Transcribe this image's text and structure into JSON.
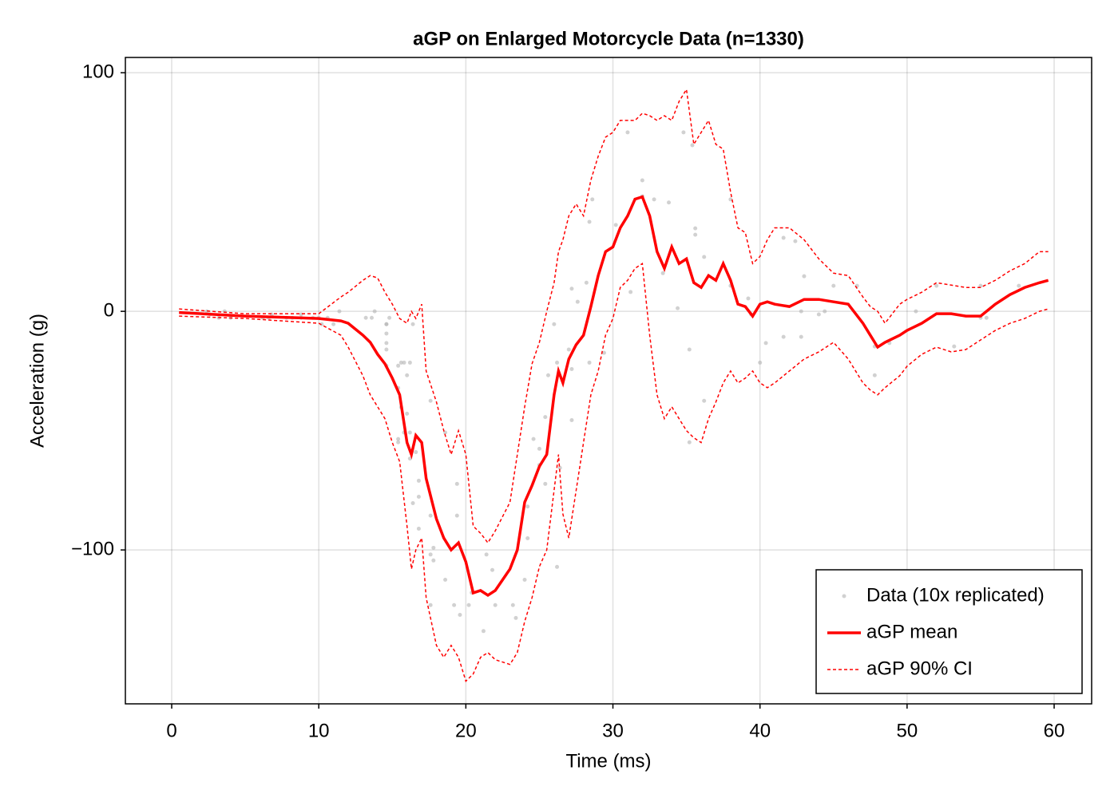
{
  "chart_data": {
    "type": "line",
    "title": "aGP on Enlarged Motorcycle Data (n=1330)",
    "x_label": "Time (ms)",
    "y_label": "Acceleration (g)",
    "xlim": [
      -3.15,
      62.55
    ],
    "ylim": [
      -164.5,
      106.4
    ],
    "xticks": [
      0,
      10,
      20,
      30,
      40,
      50,
      60
    ],
    "yticks": [
      {
        "value": -100,
        "label": "−100"
      },
      0,
      100
    ],
    "grid": true,
    "legend": "bottom right",
    "scatter": {
      "name": "Data (10x replicated)",
      "color": "#b3b3b3",
      "x": [
        2.4,
        2.6,
        3.2,
        3.6,
        4.0,
        6.2,
        6.6,
        6.8,
        7.8,
        8.2,
        8.8,
        8.8,
        9.6,
        10.0,
        10.2,
        10.6,
        11.0,
        11.4,
        13.2,
        13.6,
        13.8,
        14.6,
        14.6,
        14.6,
        14.6,
        14.6,
        14.6,
        14.8,
        15.4,
        15.4,
        15.4,
        15.4,
        15.6,
        15.6,
        15.8,
        15.8,
        16.0,
        16.0,
        16.2,
        16.2,
        16.2,
        16.4,
        16.4,
        16.6,
        16.8,
        16.8,
        16.8,
        17.6,
        17.6,
        17.6,
        17.6,
        17.8,
        17.8,
        18.6,
        18.6,
        19.2,
        19.4,
        19.4,
        19.6,
        20.2,
        20.4,
        21.2,
        21.4,
        21.8,
        22.0,
        23.2,
        23.4,
        24.0,
        24.2,
        24.2,
        24.6,
        25.0,
        25.0,
        25.4,
        25.4,
        25.6,
        26.0,
        26.2,
        26.2,
        26.4,
        27.0,
        27.2,
        27.2,
        27.2,
        27.6,
        28.2,
        28.4,
        28.4,
        28.6,
        29.4,
        30.2,
        31.0,
        31.2,
        32.0,
        32.0,
        32.8,
        33.4,
        33.8,
        34.4,
        34.8,
        35.2,
        35.2,
        35.4,
        35.6,
        35.6,
        36.2,
        36.2,
        38.0,
        38.0,
        39.2,
        39.4,
        40.0,
        40.4,
        41.6,
        41.6,
        42.4,
        42.8,
        42.8,
        43.0,
        44.0,
        44.4,
        45.0,
        46.6,
        47.8,
        47.8,
        48.8,
        50.6,
        52.0,
        53.2,
        55.0,
        55.0,
        55.4,
        57.6
      ],
      "y": [
        0.0,
        -1.3,
        -2.7,
        0.0,
        -2.7,
        -2.7,
        -2.7,
        -1.3,
        -2.7,
        -2.7,
        -1.3,
        -2.7,
        -2.7,
        -2.7,
        -5.4,
        -2.7,
        -5.4,
        0.0,
        -2.7,
        -2.7,
        0.0,
        -13.3,
        -5.4,
        -5.4,
        -9.3,
        -16.0,
        -22.8,
        -2.7,
        -22.8,
        -32.1,
        -53.5,
        -54.9,
        -40.2,
        -21.5,
        -21.5,
        -50.8,
        -42.9,
        -26.8,
        -21.5,
        -50.8,
        -61.7,
        -5.4,
        -80.4,
        -59.0,
        -71.0,
        -91.1,
        -77.7,
        -37.5,
        -85.6,
        -123.1,
        -101.9,
        -99.1,
        -104.4,
        -112.5,
        -50.8,
        -123.1,
        -85.6,
        -72.3,
        -127.2,
        -123.1,
        -117.9,
        -134.0,
        -101.9,
        -108.4,
        -123.1,
        -123.1,
        -128.5,
        -112.5,
        -95.1,
        -81.8,
        -53.5,
        -64.4,
        -57.6,
        -72.3,
        -44.3,
        -26.8,
        -5.4,
        -107.1,
        -21.5,
        -65.6,
        -16.0,
        -45.6,
        -24.2,
        9.5,
        4.0,
        12.0,
        -21.5,
        37.5,
        46.9,
        -17.4,
        36.2,
        75.0,
        8.1,
        54.9,
        48.2,
        46.9,
        16.0,
        45.6,
        1.3,
        75.0,
        -16.0,
        -54.9,
        69.6,
        34.8,
        32.1,
        -37.5,
        22.8,
        46.9,
        10.7,
        5.4,
        -1.3,
        -21.5,
        -13.3,
        30.8,
        -10.7,
        29.4,
        0.0,
        -10.7,
        14.7,
        -1.3,
        0.0,
        10.7,
        10.7,
        -26.8,
        -14.7,
        -13.3,
        0.0,
        10.7,
        -14.7,
        -2.7,
        10.7,
        -2.7,
        10.7
      ]
    },
    "x": [
      0.5,
      5,
      10,
      11.5,
      12,
      13,
      13.5,
      14,
      14.5,
      15,
      15.5,
      16,
      16.3,
      16.6,
      17,
      17.3,
      18,
      18.5,
      19,
      19.5,
      20,
      20.5,
      21,
      21.5,
      22,
      23,
      23.5,
      24,
      24.5,
      25,
      25.5,
      26,
      26.3,
      26.6,
      27,
      27.5,
      28,
      28.5,
      29,
      29.5,
      30,
      30.5,
      31,
      31.5,
      32,
      32.5,
      33,
      33.5,
      34,
      34.5,
      35,
      35.5,
      36,
      36.5,
      37,
      37.5,
      38,
      38.5,
      39,
      39.5,
      40,
      40.5,
      41,
      42,
      43,
      44,
      45,
      46,
      47,
      47.5,
      48,
      48.5,
      49.5,
      50,
      51,
      52,
      53,
      54,
      55,
      56,
      57,
      58,
      59,
      59.6
    ],
    "series": [
      {
        "name": "aGP mean",
        "color": "#ff0000",
        "values": [
          -0.5,
          -2,
          -3,
          -4,
          -5,
          -10,
          -13,
          -18,
          -22,
          -28,
          -35,
          -55,
          -60,
          -52,
          -55,
          -70,
          -87,
          -95,
          -100,
          -97,
          -105,
          -118,
          -117,
          -119,
          -117,
          -108,
          -100,
          -80,
          -73,
          -65,
          -60,
          -35,
          -25,
          -30,
          -20,
          -14,
          -10,
          2,
          15,
          25,
          27,
          35,
          40,
          47,
          48,
          40,
          25,
          18,
          27,
          20,
          22,
          12,
          10,
          15,
          13,
          20,
          13,
          3,
          2,
          -2,
          3,
          4,
          3,
          2,
          5,
          5,
          4,
          3,
          -5,
          -10,
          -15,
          -13,
          -10,
          -8,
          -5,
          -1,
          -1,
          -2,
          -2,
          3,
          7,
          10,
          12,
          13
        ]
      }
    ],
    "ci": {
      "name": "aGP 90% CI",
      "color": "#ff0000",
      "lower": [
        -2,
        -3,
        -5,
        -10,
        -15,
        -27,
        -35,
        -40,
        -45,
        -55,
        -63,
        -90,
        -108,
        -100,
        -95,
        -120,
        -140,
        -145,
        -140,
        -145,
        -155,
        -152,
        -145,
        -143,
        -146,
        -148,
        -143,
        -130,
        -120,
        -107,
        -100,
        -75,
        -60,
        -85,
        -95,
        -75,
        -55,
        -35,
        -25,
        -10,
        -3,
        10,
        13,
        18,
        20,
        -10,
        -35,
        -45,
        -40,
        -45,
        -50,
        -53,
        -55,
        -45,
        -38,
        -30,
        -25,
        -30,
        -28,
        -25,
        -30,
        -32,
        -30,
        -25,
        -20,
        -17,
        -13,
        -20,
        -30,
        -33,
        -35,
        -32,
        -27,
        -23,
        -18,
        -15,
        -17,
        -16,
        -12,
        -8,
        -5,
        -3,
        0,
        1
      ],
      "upper": [
        1,
        -1,
        -1,
        6,
        8,
        13,
        15,
        14,
        8,
        3,
        -3,
        -5,
        0,
        -3,
        3,
        -25,
        -38,
        -50,
        -60,
        -50,
        -60,
        -90,
        -93,
        -97,
        -92,
        -80,
        -60,
        -40,
        -22,
        -13,
        0,
        12,
        25,
        30,
        40,
        45,
        40,
        55,
        65,
        73,
        75,
        80,
        80,
        80,
        83,
        82,
        80,
        82,
        80,
        88,
        93,
        70,
        75,
        80,
        70,
        68,
        50,
        35,
        33,
        20,
        23,
        30,
        35,
        35,
        30,
        22,
        16,
        15,
        6,
        2,
        0,
        -5,
        3,
        5,
        8,
        12,
        11,
        10,
        10,
        13,
        17,
        20,
        25,
        25
      ]
    }
  }
}
